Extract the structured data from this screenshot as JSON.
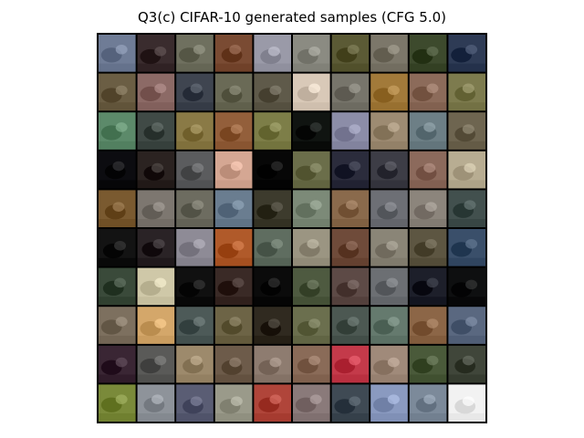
{
  "figure": {
    "title": "Q3(c) CIFAR-10 generated samples (CFG 5.0)"
  },
  "grid": {
    "rows": 10,
    "cols": 10,
    "cell_colors": [
      [
        "#6f7c96",
        "#3a2c2e",
        "#6f705f",
        "#7a4b33",
        "#9a9aa8",
        "#8b8b82",
        "#5b5a35",
        "#7c776a",
        "#3d4a2d",
        "#2e3b55"
      ],
      [
        "#6b5e44",
        "#8c6a66",
        "#3f4550",
        "#6a6a56",
        "#5f5a4a",
        "#d9c9b8",
        "#77756b",
        "#a27a3a",
        "#8c6b5a",
        "#7d7b4e"
      ],
      [
        "#5c8a6a",
        "#404a46",
        "#8a7a46",
        "#935f3b",
        "#7d7e48",
        "#101411",
        "#8c8da8",
        "#9d8b72",
        "#6d7f86",
        "#6e6550"
      ],
      [
        "#0c0c10",
        "#2b2321",
        "#5b5c5e",
        "#d5a793",
        "#070707",
        "#6b6e4a",
        "#2b2c3c",
        "#3d3d46",
        "#8c6a5c",
        "#b8ad92"
      ],
      [
        "#7a5a30",
        "#7d7770",
        "#6d6c60",
        "#6a7d90",
        "#3d3b2d",
        "#7c8a78",
        "#8a6a4c",
        "#6d6f75",
        "#8c857c",
        "#42504e"
      ],
      [
        "#131313",
        "#2a2326",
        "#8e8b96",
        "#b05a2a",
        "#5f6d60",
        "#9b9582",
        "#6f4b3a",
        "#8a8577",
        "#5d5642",
        "#3a4f6a"
      ],
      [
        "#3a4a3a",
        "#cfc8a8",
        "#101010",
        "#3a2a26",
        "#0b0b0b",
        "#4e5a40",
        "#5d4a46",
        "#6c6f73",
        "#1d1f2a",
        "#0e0f10"
      ],
      [
        "#7d705f",
        "#d4a76a",
        "#4d5a58",
        "#6d6446",
        "#302a20",
        "#6b6f4e",
        "#4c5852",
        "#657a6e",
        "#8c6647",
        "#5a6880"
      ],
      [
        "#3a2634",
        "#5a5a58",
        "#9d8a6c",
        "#6d5b4a",
        "#8e7c70",
        "#8a6b58",
        "#c43a4a",
        "#a08a7a",
        "#4a5a3a",
        "#40463a"
      ],
      [
        "#7a8a3a",
        "#8e939a",
        "#5a5d74",
        "#9a9a8a",
        "#b0453a",
        "#8a7a7a",
        "#3f4a54",
        "#8a9ac0",
        "#7c8a9a",
        "#f2f2f2"
      ]
    ]
  }
}
